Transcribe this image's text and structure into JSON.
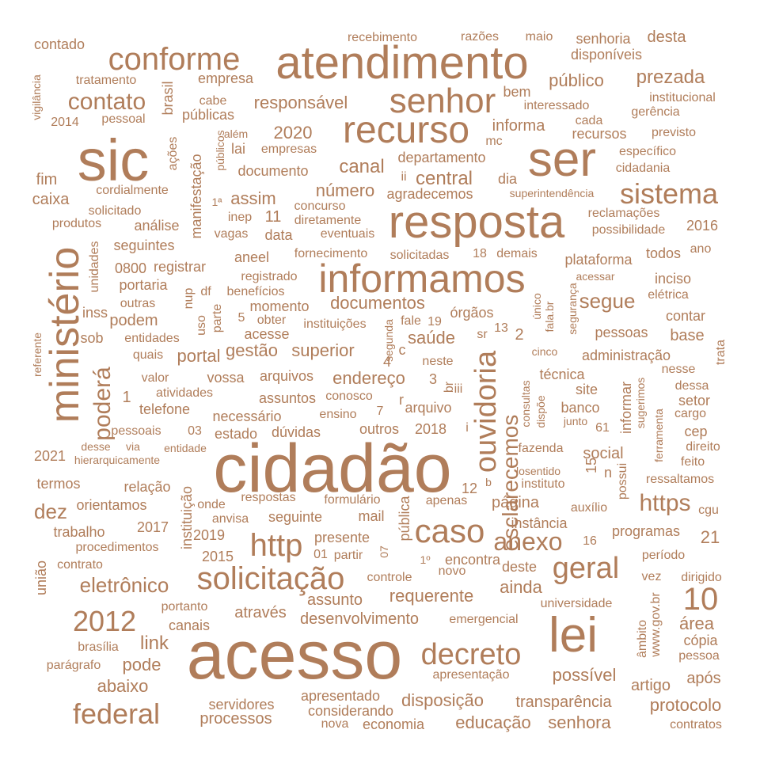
{
  "style": {
    "word_color": "#b07d5a",
    "background": "#ffffff"
  },
  "words": [
    "cidadão",
    "acesso",
    "sic",
    "atendimento",
    "resposta",
    "ser",
    "informamos",
    "lei",
    "recurso",
    "ministério",
    "senhor",
    "caso",
    "solicitação",
    "conforme",
    "decreto",
    "http",
    "sistema",
    "geral",
    "federal",
    "ouvidoria",
    "2012",
    "10",
    "anexo",
    "contato",
    "https",
    "poderá",
    "esclarecemos",
    "eletrônico",
    "segue",
    "link",
    "dez",
    "central",
    "número",
    "canal",
    "assim",
    "documentos",
    "saúde",
    "endereço",
    "gestão",
    "portal",
    "superior",
    "prezada",
    "público",
    "responsável",
    "2020",
    "pode",
    "abaixo",
    "possível",
    "protocolo",
    "transparência",
    "educação",
    "senhora",
    "disposição",
    "processos",
    "servidores",
    "apresentado",
    "considerando",
    "nova",
    "economia",
    "contratos",
    "após",
    "artigo",
    "cópia",
    "pessoa",
    "área",
    "www.gov.br",
    "âmbito",
    "universidade",
    "período",
    "dirigido",
    "vez",
    "controle",
    "novo",
    "encontra",
    "1º",
    "deste",
    "ainda",
    "requerente",
    "assunto",
    "através",
    "desenvolvimento",
    "emergencial",
    "apresentação",
    "brasília",
    "parágrafo",
    "canais",
    "portanto",
    "união",
    "contrato",
    "procedimentos",
    "trabalho",
    "2017",
    "2019",
    "2015",
    "instituição",
    "orientamos",
    "relação",
    "termos",
    "2021",
    "hierarquicamente",
    "desse",
    "via",
    "entidade",
    "pessoais",
    "03",
    "estado",
    "dúvidas",
    "outros",
    "2018",
    "telefone",
    "necessário",
    "ensino",
    "7",
    "arquivo",
    "iii",
    "br",
    "conosco",
    "r",
    "3",
    "atividades",
    "assuntos",
    "arquivos",
    "vossa",
    "valor",
    "quais",
    "entidades",
    "sob",
    "podem",
    "inss",
    "outras",
    "uso",
    "parte",
    "5",
    "obter",
    "acesse",
    "instituições",
    "momento",
    "benefícios",
    "registrado",
    "df",
    "nup",
    "aneel",
    "fornecimento",
    "solicitadas",
    "18",
    "demais",
    "plataforma",
    "todos",
    "ano",
    "portaria",
    "0800",
    "registrar",
    "unidades",
    "seguintes",
    "vagas",
    "data",
    "eventuais",
    "produtos",
    "análise",
    "manifestação",
    "inep",
    "diretamente",
    "11",
    "solicitado",
    "1ª",
    "concurso",
    "agradecemos",
    "superintendência",
    "reclamações",
    "possibilidade",
    "2016",
    "acessar",
    "inciso",
    "elétrica",
    "contar",
    "pessoas",
    "base",
    "administração",
    "trata",
    "nesse",
    "dessa",
    "setor",
    "cargo",
    "cep",
    "direito",
    "feito",
    "ferramenta",
    "sugerimos",
    "informar",
    "junto",
    "61",
    "ressaltamos",
    "cgu",
    "auxílio",
    "programas",
    "21",
    "16",
    "instância",
    "página",
    "possui",
    "n",
    "social",
    "15",
    "fazenda",
    "instituto",
    "losentido",
    "dispõe",
    "consultas",
    "técnica",
    "banco",
    "site",
    "cinco",
    "segurança",
    "fala.br",
    "único",
    "órgãos",
    "13",
    "2",
    "sr",
    "19",
    "fale",
    "segunda",
    "4",
    "c",
    "neste",
    "i",
    "b",
    "12",
    "formulário",
    "apenas",
    "mail",
    "presente",
    "01",
    "partir",
    "07",
    "pública",
    "respostas",
    "seguinte",
    "anvisa",
    "onde",
    "documento",
    "departamento",
    "ii",
    "mc",
    "dia",
    "informa",
    "recursos",
    "cada",
    "previsto",
    "gerência",
    "interessado",
    "institucional",
    "bem",
    "específico",
    "cidadania",
    "empresas",
    "além",
    "lai",
    "públicos",
    "ações",
    "públicas",
    "cabe",
    "brasil",
    "pessoal",
    "2014",
    "vigilância",
    "tratamento",
    "contado",
    "empresa",
    "recebimento",
    "razões",
    "maio",
    "senhoria",
    "desta",
    "disponíveis",
    "fim",
    "caixa",
    "cordialmente",
    "referente",
    "1"
  ]
}
